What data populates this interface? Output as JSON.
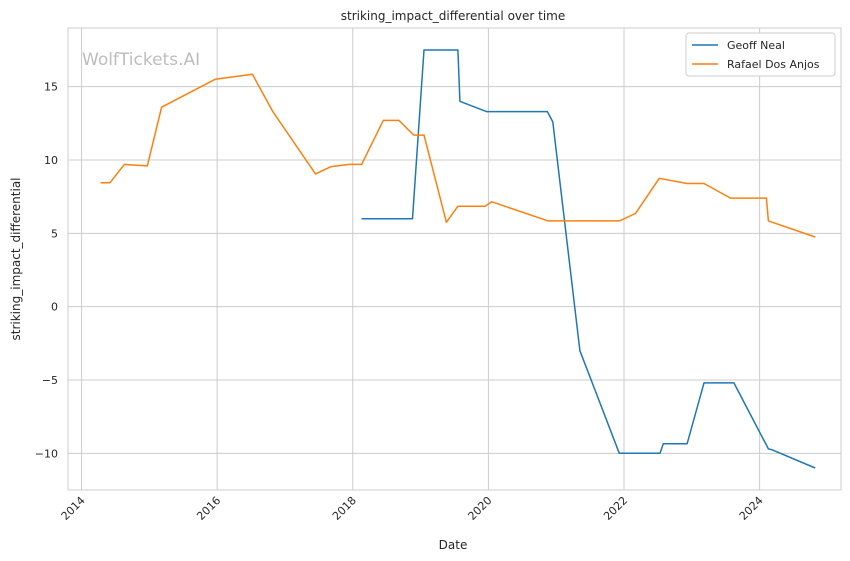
{
  "chart_data": {
    "type": "line",
    "title": "striking_impact_differential over time",
    "xlabel": "Date",
    "ylabel": "striking_impact_differential",
    "watermark": "WolfTickets.AI",
    "xlim": [
      2013.8,
      2025.2
    ],
    "ylim": [
      -12.5,
      19.0
    ],
    "x_ticks": [
      2014,
      2016,
      2018,
      2020,
      2022,
      2024
    ],
    "x_tick_labels": [
      "2014",
      "2016",
      "2018",
      "2020",
      "2022",
      "2024"
    ],
    "y_ticks": [
      -10,
      -5,
      0,
      5,
      10,
      15
    ],
    "y_tick_labels": [
      "−10",
      "−5",
      "0",
      "5",
      "10",
      "15"
    ],
    "grid": true,
    "legend_position": "top-right",
    "series": [
      {
        "name": "Geoff Neal",
        "color": "#1f77b4",
        "points": [
          [
            2018.13,
            6.0
          ],
          [
            2018.88,
            6.0
          ],
          [
            2019.05,
            17.5
          ],
          [
            2019.55,
            17.5
          ],
          [
            2019.58,
            14.0
          ],
          [
            2019.97,
            13.3
          ],
          [
            2020.87,
            13.3
          ],
          [
            2020.95,
            12.6
          ],
          [
            2021.35,
            -3.0
          ],
          [
            2021.93,
            -10.0
          ],
          [
            2022.53,
            -10.0
          ],
          [
            2022.58,
            -9.35
          ],
          [
            2022.93,
            -9.35
          ],
          [
            2023.18,
            -5.2
          ],
          [
            2023.62,
            -5.2
          ],
          [
            2024.13,
            -9.7
          ],
          [
            2024.18,
            -9.75
          ],
          [
            2024.82,
            -11.0
          ]
        ]
      },
      {
        "name": "Rafael Dos Anjos",
        "color": "#ff7f0e",
        "points": [
          [
            2014.28,
            8.45
          ],
          [
            2014.42,
            8.45
          ],
          [
            2014.63,
            9.7
          ],
          [
            2014.97,
            9.6
          ],
          [
            2015.18,
            13.6
          ],
          [
            2015.97,
            15.5
          ],
          [
            2016.52,
            15.85
          ],
          [
            2016.82,
            13.3
          ],
          [
            2017.45,
            9.05
          ],
          [
            2017.68,
            9.55
          ],
          [
            2017.95,
            9.7
          ],
          [
            2018.13,
            9.7
          ],
          [
            2018.45,
            12.7
          ],
          [
            2018.68,
            12.7
          ],
          [
            2018.9,
            11.7
          ],
          [
            2019.05,
            11.7
          ],
          [
            2019.38,
            5.75
          ],
          [
            2019.55,
            6.85
          ],
          [
            2019.95,
            6.85
          ],
          [
            2020.05,
            7.15
          ],
          [
            2020.88,
            5.85
          ],
          [
            2021.93,
            5.85
          ],
          [
            2022.17,
            6.35
          ],
          [
            2022.52,
            8.75
          ],
          [
            2022.93,
            8.4
          ],
          [
            2023.18,
            8.4
          ],
          [
            2023.57,
            7.4
          ],
          [
            2024.1,
            7.4
          ],
          [
            2024.13,
            5.85
          ],
          [
            2024.82,
            4.75
          ]
        ]
      }
    ]
  }
}
